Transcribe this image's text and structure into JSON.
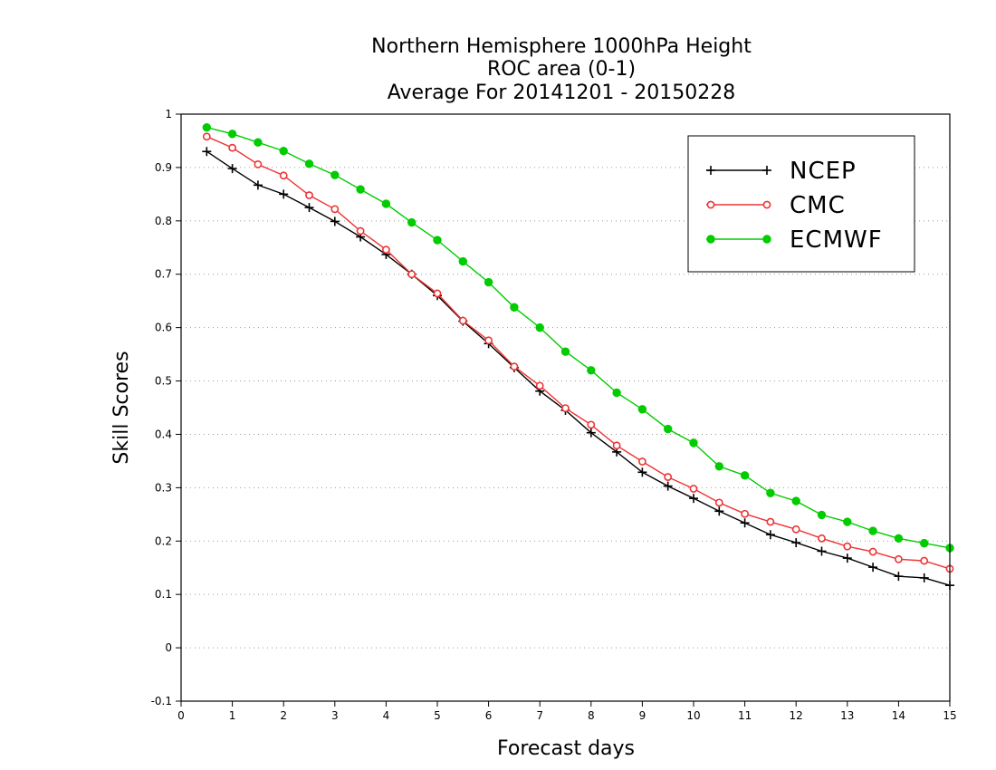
{
  "chart_data": {
    "type": "line",
    "title_lines": [
      "Northern Hemisphere 1000hPa Height",
      "ROC area (0-1)",
      "Average For 20141201 - 20150228"
    ],
    "xlabel": "Forecast days",
    "ylabel": "Skill Scores",
    "xlim": [
      0,
      15
    ],
    "ylim": [
      -0.1,
      1
    ],
    "x_ticks": [
      0,
      1,
      2,
      3,
      4,
      5,
      6,
      7,
      8,
      9,
      10,
      11,
      12,
      13,
      14,
      15
    ],
    "y_ticks": [
      -0.1,
      0,
      0.1,
      0.2,
      0.3,
      0.4,
      0.5,
      0.6,
      0.7,
      0.8,
      0.9,
      1
    ],
    "y_tick_labels": [
      "-0.1",
      "0",
      "0.1",
      "0.2",
      "0.3",
      "0.4",
      "0.5",
      "0.6",
      "0.7",
      "0.8",
      "0.9",
      "1"
    ],
    "grid": "horizontal dotted",
    "legend_position": "top-right",
    "x": [
      0.5,
      1,
      1.5,
      2,
      2.5,
      3,
      3.5,
      4,
      4.5,
      5,
      5.5,
      6,
      6.5,
      7,
      7.5,
      8,
      8.5,
      9,
      9.5,
      10,
      10.5,
      11,
      11.5,
      12,
      12.5,
      13,
      13.5,
      14,
      14.5,
      15
    ],
    "series": [
      {
        "name": "NCEP",
        "color": "#000000",
        "marker": "plus",
        "values": [
          0.93,
          0.898,
          0.867,
          0.85,
          0.825,
          0.799,
          0.77,
          0.737,
          0.7,
          0.66,
          0.612,
          0.57,
          0.525,
          0.481,
          0.445,
          0.403,
          0.367,
          0.329,
          0.303,
          0.28,
          0.256,
          0.234,
          0.212,
          0.197,
          0.181,
          0.168,
          0.151,
          0.134,
          0.131,
          0.117
        ]
      },
      {
        "name": "CMC",
        "color": "#ee3333",
        "marker": "open-circle",
        "values": [
          0.958,
          0.937,
          0.906,
          0.885,
          0.848,
          0.822,
          0.781,
          0.746,
          0.7,
          0.664,
          0.613,
          0.576,
          0.527,
          0.491,
          0.449,
          0.418,
          0.379,
          0.349,
          0.32,
          0.298,
          0.272,
          0.251,
          0.236,
          0.222,
          0.205,
          0.19,
          0.18,
          0.166,
          0.163,
          0.148
        ]
      },
      {
        "name": "ECMWF",
        "color": "#00cc00",
        "marker": "filled-circle",
        "values": [
          0.975,
          0.963,
          0.947,
          0.931,
          0.907,
          0.886,
          0.859,
          0.832,
          0.797,
          0.764,
          0.724,
          0.685,
          0.638,
          0.6,
          0.555,
          0.52,
          0.478,
          0.447,
          0.41,
          0.384,
          0.34,
          0.323,
          0.29,
          0.275,
          0.249,
          0.236,
          0.219,
          0.205,
          0.196,
          0.187
        ]
      }
    ]
  }
}
